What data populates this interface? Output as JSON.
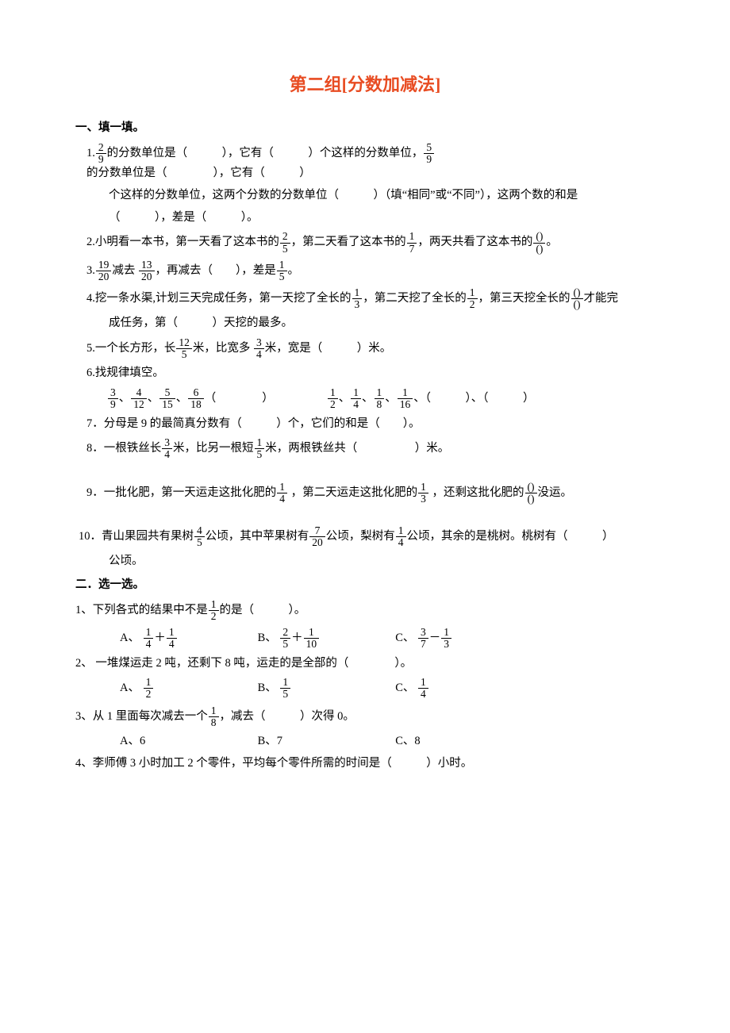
{
  "title": "第二组[分数加减法]",
  "sec1": "一、填一填。",
  "q1_pre": "1.",
  "q1_f1": {
    "n": "2",
    "d": "9"
  },
  "q1_t1": "的分数单位是（　　　），它有（　　　）个这样的分数单位，",
  "q1_f2": {
    "n": "5",
    "d": "9"
  },
  "q1_t2": "的分数单位是（　　　　），它有（　　　）",
  "q1_line2": "个这样的分数单位，这两个分数的分数单位（　　　）（填“相同”或“不同”），这两个数的和是",
  "q1_line3": "（　　　），差是（　　　）。",
  "q2_pre": "2.小明看一本书，第一天看了这本书的",
  "q2_f1": {
    "n": "2",
    "d": "5"
  },
  "q2_t1": "，第二天看了这本书的",
  "q2_f2": {
    "n": "1",
    "d": "7"
  },
  "q2_t2": "，两天共看了这本书的",
  "q2_f3": {
    "n": "()",
    "d": "()"
  },
  "q2_t3": "。",
  "q3_pre": "3.",
  "q3_f1": {
    "n": "19",
    "d": "20"
  },
  "q3_t1": "减去 ",
  "q3_f2": {
    "n": "13",
    "d": "20"
  },
  "q3_t2": "，再减去（　　），差是",
  "q3_f3": {
    "n": "1",
    "d": "5"
  },
  "q3_t3": "。",
  "q4_pre": "4.挖一条水渠,计划三天完成任务，第一天挖了全长的",
  "q4_f1": {
    "n": "1",
    "d": "3"
  },
  "q4_t1": "，第二天挖了全长的",
  "q4_f2": {
    "n": "1",
    "d": "2"
  },
  "q4_t2": "，第三天挖全长的",
  "q4_f3": {
    "n": "()",
    "d": "()"
  },
  "q4_t3": "才能完",
  "q4_line2": "成任务，第（　　　）天挖的最多。",
  "q5_pre": "5.一个长方形，长",
  "q5_f1": {
    "n": "12",
    "d": "5"
  },
  "q5_t1": "米，比宽多 ",
  "q5_f2": {
    "n": "3",
    "d": "4"
  },
  "q5_t2": "米，宽是（　　　）米。",
  "q6": "6.找规律填空。",
  "q6_row_a": [
    {
      "n": "3",
      "d": "9"
    },
    "、",
    {
      "n": "4",
      "d": "12"
    },
    "、",
    {
      "n": "5",
      "d": "15"
    },
    "、",
    {
      "n": "6",
      "d": "18"
    },
    "（　　　　）"
  ],
  "q6_row_b": [
    {
      "n": "1",
      "d": "2"
    },
    "、",
    {
      "n": "1",
      "d": "4"
    },
    "、",
    {
      "n": "1",
      "d": "8"
    },
    "、",
    {
      "n": "1",
      "d": "16"
    },
    "、（　　　）、（　　　）"
  ],
  "q7": "7．分母是 9 的最简真分数有（　　　）个，它们的和是（　　）。",
  "q8_pre": "8．一根铁丝长",
  "q8_f1": {
    "n": "3",
    "d": "4"
  },
  "q8_t1": "米，比另一根短",
  "q8_f2": {
    "n": "1",
    "d": "5"
  },
  "q8_t2": "米，两根铁丝共（　　　　　）米。",
  "q9_pre": "9．一批化肥，第一天运走这批化肥的",
  "q9_f1": {
    "n": "1",
    "d": "4"
  },
  "q9_t1": " ，第二天运走这批化肥的",
  "q9_f2": {
    "n": "1",
    "d": "3"
  },
  "q9_t2": " ，还剩这批化肥的",
  "q9_f3": {
    "n": "()",
    "d": "()"
  },
  "q9_t3": "没运。",
  "q10_pre": "10．青山果园共有果树",
  "q10_f1": {
    "n": "4",
    "d": "5"
  },
  "q10_t1": "公顷，其中苹果树有",
  "q10_f2": {
    "n": "7",
    "d": "20"
  },
  "q10_t2": "公顷，梨树有",
  "q10_f3": {
    "n": "1",
    "d": "4"
  },
  "q10_t3": "公顷，其余的是桃树。桃树有（　　　）",
  "q10_line2": "公顷。",
  "sec2": "二．选一选。",
  "c1_pre": "1、下列各式的结果中不是",
  "c1_f": {
    "n": "1",
    "d": "2"
  },
  "c1_post": "的是（　　　）。",
  "c1_A_pre": "A、",
  "c1_A_f1": {
    "n": "1",
    "d": "4"
  },
  "c1_A_plus": "＋",
  "c1_A_f2": {
    "n": "1",
    "d": "4"
  },
  "c1_B_pre": "B、",
  "c1_B_f1": {
    "n": "2",
    "d": "5"
  },
  "c1_B_plus": "＋",
  "c1_B_f2": {
    "n": "1",
    "d": "10"
  },
  "c1_C_pre": "C、",
  "c1_C_f1": {
    "n": "3",
    "d": "7"
  },
  "c1_C_minus": " － ",
  "c1_C_f2": {
    "n": "1",
    "d": "3"
  },
  "c2": "2、 一堆煤运走 2 吨，还剩下 8 吨，运走的是全部的（　　　　）。",
  "c2_A": "A、",
  "c2_Af": {
    "n": "1",
    "d": "2"
  },
  "c2_B": "B、",
  "c2_Bf": {
    "n": "1",
    "d": "5"
  },
  "c2_C": "C、",
  "c2_Cf": {
    "n": "1",
    "d": "4"
  },
  "c3_pre": "3、从 1 里面每次减去一个",
  "c3_f": {
    "n": "1",
    "d": "8"
  },
  "c3_post": "，减去（　　　）次得 0。",
  "c3_A": "A、6",
  "c3_B": "B、7",
  "c3_C": "C、8",
  "c4": "4、李师傅 3 小时加工 2 个零件，平均每个零件所需的时间是（　　　）小时。"
}
